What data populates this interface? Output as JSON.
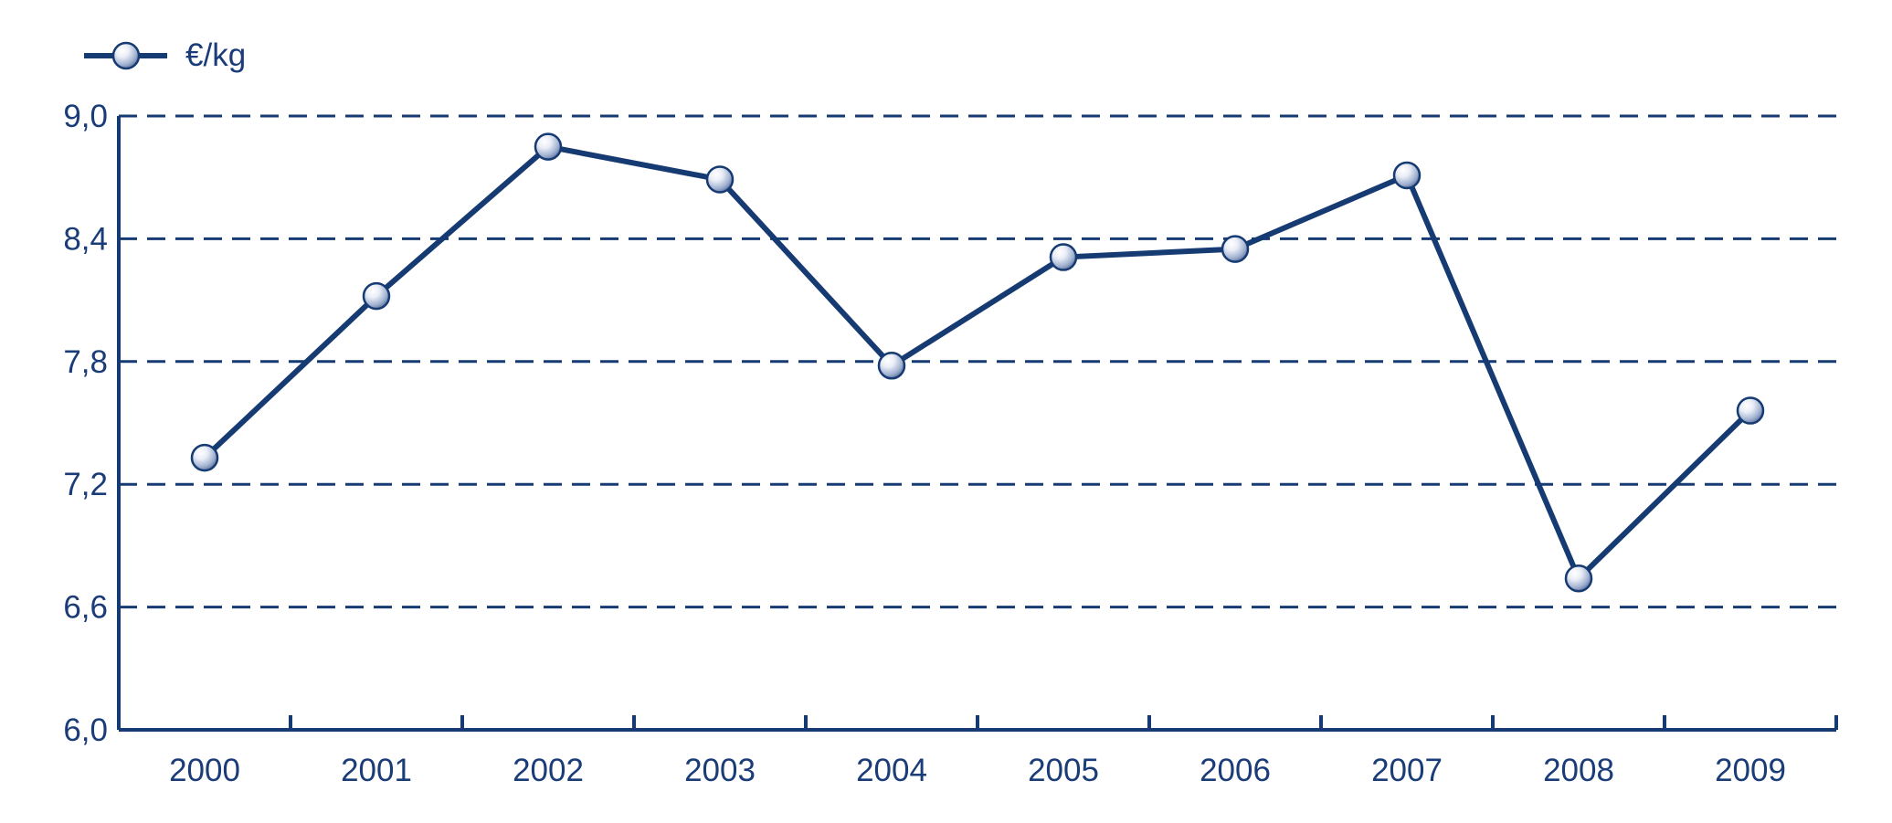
{
  "chart_data": {
    "type": "line",
    "title": "",
    "xlabel": "",
    "ylabel": "",
    "categories": [
      "2000",
      "2001",
      "2002",
      "2003",
      "2004",
      "2005",
      "2006",
      "2007",
      "2008",
      "2009"
    ],
    "series": [
      {
        "name": "€/kg",
        "values": [
          7.33,
          8.12,
          8.85,
          8.69,
          7.78,
          8.31,
          8.35,
          8.71,
          6.74,
          7.56
        ],
        "color": "#163a72",
        "marker": "sphere"
      }
    ],
    "ylim": [
      6.0,
      9.0
    ],
    "yticks": [
      6.0,
      6.6,
      7.2,
      7.8,
      8.4,
      9.0
    ],
    "ytick_labels": [
      "6,0",
      "6,6",
      "7,2",
      "7,8",
      "8,4",
      "9,0"
    ],
    "grid": "horizontal dashed",
    "legend_position": "top-left"
  }
}
